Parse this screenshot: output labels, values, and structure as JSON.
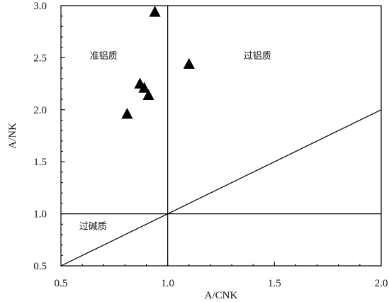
{
  "chart_data": {
    "type": "scatter",
    "xlabel": "A/CNK",
    "ylabel": "A/NK",
    "xlim": [
      0.5,
      2.0
    ],
    "ylim": [
      0.5,
      3.0
    ],
    "x_ticks": [
      {
        "value": 0.5,
        "label": "0.5"
      },
      {
        "value": 1.0,
        "label": "1.0"
      },
      {
        "value": 1.5,
        "label": "1.5"
      },
      {
        "value": 2.0,
        "label": "2.0"
      }
    ],
    "y_ticks": [
      {
        "value": 0.5,
        "label": "0.5"
      },
      {
        "value": 1.0,
        "label": "1.0"
      },
      {
        "value": 1.5,
        "label": "1.5"
      },
      {
        "value": 2.0,
        "label": "2.0"
      },
      {
        "value": 2.5,
        "label": "2.5"
      },
      {
        "value": 3.0,
        "label": "3.0"
      }
    ],
    "minor_step": 0.1,
    "marker": "triangle",
    "marker_color": "#000000",
    "points": [
      {
        "x": 0.94,
        "y": 2.94
      },
      {
        "x": 1.1,
        "y": 2.44
      },
      {
        "x": 0.87,
        "y": 2.25
      },
      {
        "x": 0.89,
        "y": 2.21
      },
      {
        "x": 0.91,
        "y": 2.14
      },
      {
        "x": 0.81,
        "y": 1.96
      }
    ],
    "boundary_lines": [
      {
        "name": "vertical",
        "from": [
          1.0,
          0.5
        ],
        "to": [
          1.0,
          3.0
        ]
      },
      {
        "name": "horizontal",
        "from": [
          0.5,
          1.0
        ],
        "to": [
          2.0,
          1.0
        ]
      },
      {
        "name": "diagonal",
        "from": [
          0.5,
          0.5
        ],
        "to": [
          2.0,
          2.0
        ]
      }
    ],
    "region_labels": [
      {
        "text": "准铝质",
        "x": 0.7,
        "y": 2.49
      },
      {
        "text": "过铝质",
        "x": 1.42,
        "y": 2.49
      },
      {
        "text": "过碱质",
        "x": 0.65,
        "y": 0.85
      }
    ]
  }
}
